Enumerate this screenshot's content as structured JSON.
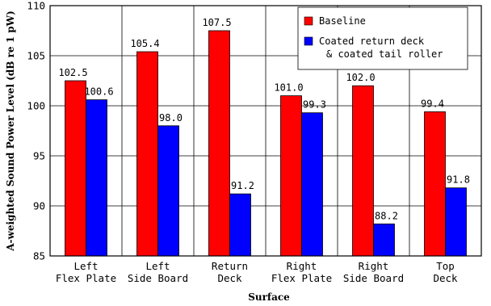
{
  "chart_data": {
    "type": "bar",
    "xlabel": "Surface",
    "ylabel": "A-weighted Sound Power Level (dB re 1 pW)",
    "ylim": [
      85,
      110
    ],
    "yticks": [
      85,
      90,
      95,
      100,
      105,
      110
    ],
    "grid": true,
    "legend_position": "top-right",
    "categories": [
      [
        "Left",
        "Flex Plate"
      ],
      [
        "Left",
        "Side Board"
      ],
      [
        "Return",
        "Deck"
      ],
      [
        "Right",
        "Flex Plate"
      ],
      [
        "Right",
        "Side Board"
      ],
      [
        "Top",
        "Deck"
      ]
    ],
    "series": [
      {
        "name": "Baseline",
        "color": "#ff0000",
        "values": [
          102.5,
          105.4,
          107.5,
          101.0,
          102.0,
          99.4
        ],
        "labels": [
          "102.5",
          "105.4",
          "107.5",
          "101.0",
          "102.0",
          "99.4"
        ]
      },
      {
        "name": [
          "Coated return deck",
          "& coated tail roller"
        ],
        "color": "#0000ff",
        "values": [
          100.6,
          98.0,
          91.2,
          99.3,
          88.2,
          91.8
        ],
        "labels": [
          "100.6",
          "98.0",
          "91.2",
          "99.3",
          "88.2",
          "91.8"
        ]
      }
    ]
  }
}
